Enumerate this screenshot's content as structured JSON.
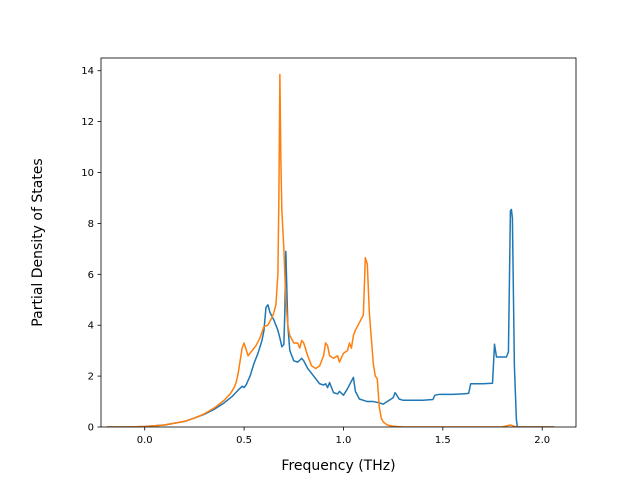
{
  "chart_data": {
    "type": "line",
    "title": "",
    "xlabel": "Frequency (THz)",
    "ylabel": "Partial Density of States",
    "xlim": [
      -0.22,
      2.17
    ],
    "ylim": [
      0,
      14.5
    ],
    "xticks": [
      0.0,
      0.5,
      1.0,
      1.5,
      2.0
    ],
    "xtick_labels": [
      "0.0",
      "0.5",
      "1.0",
      "1.5",
      "2.0"
    ],
    "yticks": [
      0,
      2,
      4,
      6,
      8,
      10,
      12,
      14
    ],
    "ytick_labels": [
      "0",
      "2",
      "4",
      "6",
      "8",
      "10",
      "12",
      "14"
    ],
    "grid": false,
    "legend": "none",
    "series": [
      {
        "color": "#1f77b4",
        "x": [
          -0.19,
          -0.1,
          0.0,
          0.1,
          0.2,
          0.25,
          0.3,
          0.35,
          0.4,
          0.44,
          0.47,
          0.49,
          0.5,
          0.51,
          0.53,
          0.55,
          0.57,
          0.59,
          0.6,
          0.61,
          0.62,
          0.63,
          0.65,
          0.67,
          0.68,
          0.69,
          0.7,
          0.705,
          0.71,
          0.72,
          0.73,
          0.75,
          0.77,
          0.79,
          0.8,
          0.82,
          0.85,
          0.88,
          0.9,
          0.91,
          0.92,
          0.93,
          0.95,
          0.97,
          0.98,
          1.0,
          1.02,
          1.04,
          1.05,
          1.06,
          1.08,
          1.1,
          1.12,
          1.15,
          1.18,
          1.2,
          1.22,
          1.25,
          1.26,
          1.28,
          1.3,
          1.35,
          1.4,
          1.45,
          1.46,
          1.48,
          1.5,
          1.55,
          1.6,
          1.63,
          1.64,
          1.66,
          1.7,
          1.75,
          1.76,
          1.77,
          1.78,
          1.8,
          1.82,
          1.83,
          1.84,
          1.845,
          1.85,
          1.86,
          1.87,
          1.875,
          1.9,
          2.0,
          2.06
        ],
        "y": [
          0.0,
          0.0,
          0.02,
          0.08,
          0.22,
          0.35,
          0.5,
          0.7,
          0.95,
          1.2,
          1.45,
          1.6,
          1.55,
          1.65,
          2.0,
          2.5,
          2.9,
          3.4,
          3.8,
          4.7,
          4.8,
          4.5,
          4.2,
          3.8,
          3.5,
          3.15,
          3.25,
          4.5,
          6.9,
          4.0,
          3.0,
          2.6,
          2.55,
          2.7,
          2.6,
          2.3,
          2.0,
          1.7,
          1.65,
          1.7,
          1.55,
          1.75,
          1.35,
          1.3,
          1.4,
          1.25,
          1.5,
          1.8,
          1.95,
          1.4,
          1.1,
          1.05,
          1.0,
          1.0,
          0.95,
          0.9,
          1.0,
          1.15,
          1.35,
          1.1,
          1.05,
          1.05,
          1.05,
          1.08,
          1.25,
          1.28,
          1.28,
          1.28,
          1.3,
          1.32,
          1.7,
          1.7,
          1.7,
          1.72,
          3.25,
          2.75,
          2.75,
          2.75,
          2.75,
          2.95,
          8.5,
          8.55,
          8.2,
          2.4,
          0.3,
          0.0,
          0.0,
          0.0,
          0.0
        ]
      },
      {
        "color": "#ff7f0e",
        "x": [
          -0.19,
          -0.1,
          0.0,
          0.1,
          0.2,
          0.25,
          0.3,
          0.35,
          0.4,
          0.43,
          0.45,
          0.46,
          0.47,
          0.48,
          0.49,
          0.5,
          0.52,
          0.54,
          0.56,
          0.58,
          0.6,
          0.62,
          0.64,
          0.65,
          0.66,
          0.67,
          0.675,
          0.68,
          0.685,
          0.69,
          0.7,
          0.71,
          0.72,
          0.73,
          0.75,
          0.77,
          0.78,
          0.79,
          0.8,
          0.82,
          0.84,
          0.86,
          0.88,
          0.9,
          0.91,
          0.92,
          0.93,
          0.95,
          0.97,
          0.98,
          1.0,
          1.02,
          1.03,
          1.04,
          1.05,
          1.06,
          1.08,
          1.1,
          1.11,
          1.12,
          1.13,
          1.14,
          1.15,
          1.16,
          1.17,
          1.18,
          1.19,
          1.2,
          1.22,
          1.25,
          1.3,
          1.4,
          1.5,
          1.6,
          1.7,
          1.8,
          1.84,
          1.87,
          1.9,
          2.0,
          2.06
        ],
        "y": [
          0.0,
          0.0,
          0.02,
          0.08,
          0.22,
          0.35,
          0.52,
          0.75,
          1.05,
          1.3,
          1.55,
          1.75,
          2.1,
          2.6,
          3.1,
          3.3,
          2.8,
          3.0,
          3.2,
          3.5,
          3.95,
          4.0,
          4.3,
          4.5,
          4.8,
          6.0,
          9.0,
          13.85,
          10.5,
          8.5,
          7.0,
          5.0,
          4.0,
          3.6,
          3.3,
          3.3,
          3.1,
          3.4,
          3.3,
          2.8,
          2.4,
          2.3,
          2.4,
          2.8,
          3.3,
          3.2,
          2.8,
          2.7,
          2.8,
          2.55,
          2.9,
          3.0,
          3.3,
          3.1,
          3.6,
          3.8,
          4.1,
          4.4,
          6.65,
          6.4,
          4.5,
          3.5,
          2.5,
          2.0,
          1.9,
          0.8,
          0.35,
          0.2,
          0.08,
          0.03,
          0.0,
          0.0,
          0.0,
          0.0,
          0.0,
          0.0,
          0.08,
          0.0,
          0.0,
          0.0,
          0.0
        ]
      }
    ]
  }
}
